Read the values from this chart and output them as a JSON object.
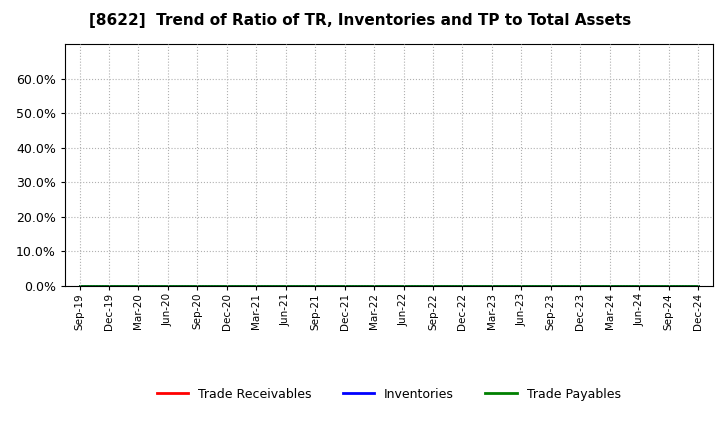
{
  "title": "[8622]  Trend of Ratio of TR, Inventories and TP to Total Assets",
  "title_fontsize": 11,
  "ylim": [
    0.0,
    0.7
  ],
  "yticks": [
    0.0,
    0.1,
    0.2,
    0.3,
    0.4,
    0.5,
    0.6
  ],
  "ytick_labels": [
    "0.0%",
    "10.0%",
    "20.0%",
    "30.0%",
    "40.0%",
    "50.0%",
    "60.0%"
  ],
  "x_labels": [
    "Sep-19",
    "Dec-19",
    "Mar-20",
    "Jun-20",
    "Sep-20",
    "Dec-20",
    "Mar-21",
    "Jun-21",
    "Sep-21",
    "Dec-21",
    "Mar-22",
    "Jun-22",
    "Sep-22",
    "Dec-22",
    "Mar-23",
    "Jun-23",
    "Sep-23",
    "Dec-23",
    "Mar-24",
    "Jun-24",
    "Sep-24",
    "Dec-24"
  ],
  "trade_receivables": [
    0,
    0,
    0,
    0,
    0,
    0,
    0,
    0,
    0,
    0,
    0,
    0,
    0,
    0,
    0,
    0,
    0,
    0,
    0,
    0,
    0,
    0
  ],
  "inventories": [
    0,
    0,
    0,
    0,
    0,
    0,
    0,
    0,
    0,
    0,
    0,
    0,
    0,
    0,
    0,
    0,
    0,
    0,
    0,
    0,
    0,
    0
  ],
  "trade_payables": [
    0,
    0,
    0,
    0,
    0,
    0,
    0,
    0,
    0,
    0,
    0,
    0,
    0,
    0,
    0,
    0,
    0,
    0,
    0,
    0,
    0,
    0
  ],
  "legend_labels": [
    "Trade Receivables",
    "Inventories",
    "Trade Payables"
  ],
  "legend_colors": [
    "#ff0000",
    "#0000ff",
    "#008000"
  ],
  "background_color": "#ffffff",
  "plot_bg_color": "#ffffff",
  "grid_color": "#b0b0b0",
  "line_width": 2.0
}
